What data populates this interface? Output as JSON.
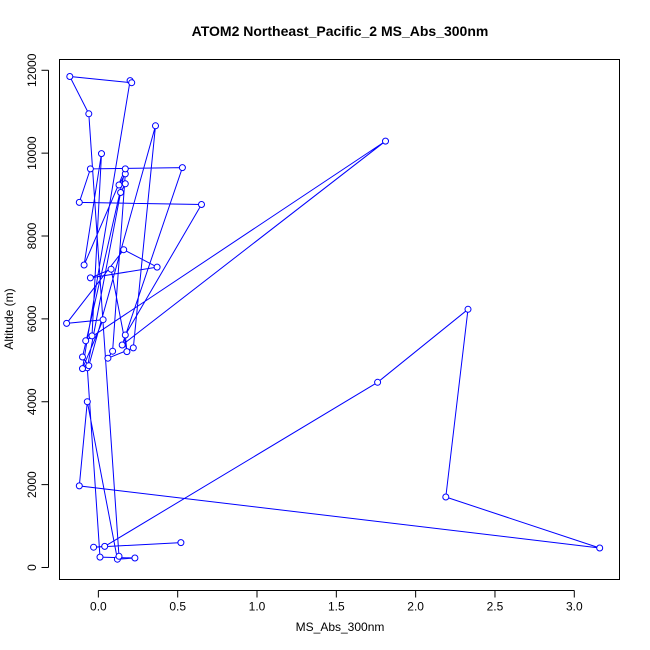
{
  "chart_data": {
    "type": "line",
    "title": "ATOM2 Northeast_Pacific_2 MS_Abs_300nm",
    "xlabel": "MS_Abs_300nm",
    "ylabel": "Altitude (m)",
    "xlim": [
      -0.245,
      3.285
    ],
    "ylim": [
      -290,
      12260
    ],
    "xticks": [
      0.0,
      0.5,
      1.0,
      1.5,
      2.0,
      2.5,
      3.0
    ],
    "xtick_labels": [
      "0.0",
      "0.5",
      "1.0",
      "1.5",
      "2.0",
      "2.5",
      "3.0"
    ],
    "yticks": [
      0,
      2000,
      4000,
      6000,
      8000,
      10000,
      12000
    ],
    "ytick_labels": [
      "0",
      "2000",
      "4000",
      "6000",
      "8000",
      "10000",
      "12000"
    ],
    "line_color": "#0000ff",
    "marker": "open-circle",
    "grid": false,
    "legend": "none",
    "series": [
      {
        "x": [
          0.52,
          -0.03,
          0.04,
          1.76,
          2.33,
          2.19,
          3.16,
          -0.12,
          -0.07,
          0.12,
          0.23,
          0.01,
          -0.07,
          0.14,
          0.17,
          0.13,
          0.17,
          0.09,
          0.06,
          0.22,
          0.36,
          -0.06,
          -0.1,
          0.17,
          -0.09,
          0.02,
          -0.04,
          -0.08,
          1.81,
          0.15,
          0.53,
          -0.05,
          -0.12,
          0.65,
          0.17,
          0.18,
          0.08,
          -0.05,
          0.37,
          0.16,
          -0.2,
          0.03,
          -0.1,
          0.2,
          0.21,
          -0.18,
          -0.06,
          0.13
        ],
        "y": [
          600,
          490,
          510,
          4470,
          6230,
          1700,
          470,
          1970,
          4000,
          200,
          230,
          250,
          4820,
          9050,
          9260,
          9230,
          9500,
          5220,
          5050,
          5300,
          10660,
          4870,
          5080,
          9620,
          7300,
          9990,
          5590,
          5470,
          10290,
          5370,
          9650,
          9620,
          8810,
          8760,
          5610,
          5210,
          7200,
          6990,
          7250,
          7670,
          5890,
          5980,
          4800,
          11750,
          11700,
          11850,
          10950,
          270
        ]
      }
    ]
  }
}
